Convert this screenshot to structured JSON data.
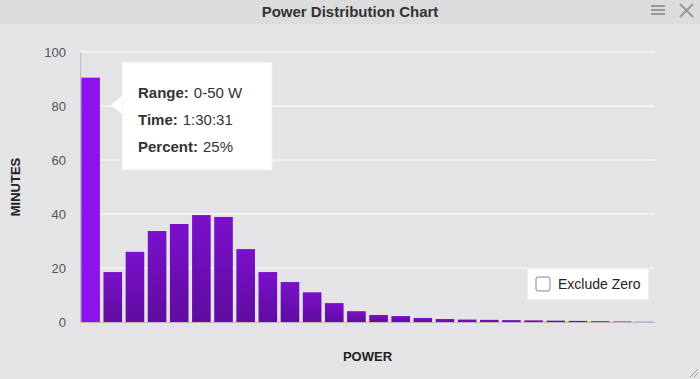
{
  "chart_data": {
    "type": "bar",
    "title": "Power Distribution Chart",
    "x_label": "POWER",
    "y_label": "MINUTES",
    "categories": [
      null,
      null,
      null,
      null,
      null,
      null,
      null,
      null,
      null,
      null,
      null,
      null,
      null,
      null,
      null,
      null,
      null,
      null,
      null,
      null,
      null,
      null,
      null,
      null,
      null,
      null
    ],
    "values": [
      90.5,
      18.5,
      26,
      33.7,
      36.3,
      39.6,
      38.9,
      27,
      18.5,
      14.8,
      11,
      7,
      4,
      2.6,
      2.2,
      1.5,
      1.1,
      0.9,
      0.8,
      0.7,
      0.6,
      0.5,
      0.4,
      0.3,
      0.2,
      0.1
    ],
    "color": "#7a10cc",
    "ylim": [
      0,
      100
    ],
    "yticks": [
      0,
      20,
      40,
      60,
      80,
      100
    ],
    "grid": true,
    "tick_labels": "y",
    "tooltip": {
      "rows": [
        {
          "label": "Range:",
          "value": "0-50 W"
        },
        {
          "label": "Time:",
          "value": "1:30:31"
        },
        {
          "label": "Percent:",
          "value": "25%"
        }
      ]
    },
    "checkbox_label": "Exclude Zero"
  }
}
